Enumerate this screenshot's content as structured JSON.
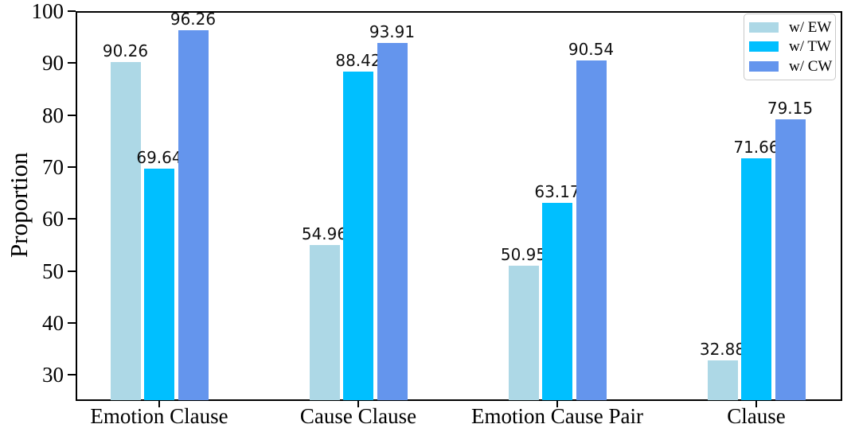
{
  "chart_data": {
    "type": "bar",
    "title": "",
    "xlabel": "",
    "ylabel": "Proportion",
    "categories": [
      "Emotion Clause",
      "Cause Clause",
      "Emotion Cause Pair",
      "Clause"
    ],
    "series": [
      {
        "name": "w/ EW",
        "color": "#ADD8E6",
        "values": [
          90.26,
          54.96,
          50.95,
          32.88
        ]
      },
      {
        "name": "w/ TW",
        "color": "#00BFFF",
        "values": [
          69.64,
          88.42,
          63.17,
          71.66
        ]
      },
      {
        "name": "w/ CW",
        "color": "#6495ED",
        "values": [
          96.26,
          93.91,
          90.54,
          79.15
        ]
      }
    ],
    "ylim": [
      25,
      100
    ],
    "yticks": [
      30,
      40,
      50,
      60,
      70,
      80,
      90,
      100
    ],
    "grid": false,
    "legend_position": "upper right",
    "value_label_decimals": 2
  },
  "styles": {
    "axis_color": "#000000",
    "background": "#ffffff",
    "text_color": "#000000",
    "legend_border_color": "#c9c9c9"
  }
}
